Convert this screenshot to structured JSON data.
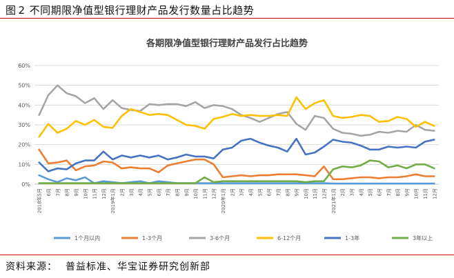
{
  "figure": {
    "label": "图",
    "number": "2",
    "caption": "不同期限净值型银行理财产品发行数量占比趋势"
  },
  "source": {
    "label": "资料来源：",
    "text": "普益标准、华宝证券研究创新部"
  },
  "chart_data": {
    "type": "line",
    "title": "各期限净值型银行理财产品发行占比趋势",
    "xlabel": "",
    "ylabel": "",
    "ylim": [
      0,
      60
    ],
    "yticks": [
      "0%",
      "10%",
      "20%",
      "30%",
      "40%",
      "50%",
      "60%"
    ],
    "grid": "horizontal",
    "legend_position": "bottom",
    "categories": [
      "2018年5月",
      "6月",
      "7月",
      "8月",
      "9月",
      "10月",
      "11月",
      "12月",
      "2019年1月",
      "2月",
      "3月",
      "4月",
      "5月",
      "6月",
      "7月",
      "8月",
      "9月",
      "10月",
      "11月",
      "12月",
      "2020年1月",
      "2月",
      "3月",
      "4月",
      "5月",
      "6月",
      "7月",
      "8月",
      "9月",
      "10月",
      "11月",
      "12月",
      "2021年1月",
      "2月",
      "3月",
      "4月",
      "5月",
      "6月",
      "7月",
      "8月",
      "9月",
      "10月",
      "11月",
      "12月"
    ],
    "series": [
      {
        "name": "1个月以内",
        "color": "#5b9bd5",
        "values": [
          4.5,
          2.5,
          1.0,
          3.0,
          2.0,
          3.5,
          0.5,
          1.5,
          1.0,
          0.5,
          1.0,
          1.5,
          0.5,
          1.5,
          1.0,
          0.5,
          0.5,
          0.5,
          0.5,
          0.5,
          0.5,
          0.5,
          0.5,
          0.5,
          0.5,
          0.5,
          0.5,
          0.5,
          0.5,
          0.5,
          0.5,
          0.5,
          0.3,
          0.3,
          0.3,
          0.3,
          0.3,
          0.3,
          0.3,
          0.3,
          0.3,
          0.3,
          0.3,
          0.3
        ]
      },
      {
        "name": "1-3个月",
        "color": "#ed7d31",
        "values": [
          17.5,
          10.5,
          11.0,
          12.0,
          7.0,
          9.0,
          9.5,
          11.5,
          11.0,
          8.0,
          8.5,
          8.0,
          8.0,
          6.0,
          9.5,
          10.5,
          11.5,
          12.5,
          12.5,
          10.0,
          3.5,
          4.0,
          4.5,
          4.0,
          4.5,
          4.5,
          5.0,
          5.0,
          5.0,
          4.5,
          4.0,
          9.0,
          2.5,
          2.5,
          3.0,
          3.5,
          3.5,
          3.0,
          3.5,
          3.5,
          4.0,
          5.0,
          4.0,
          4.0
        ]
      },
      {
        "name": "3-6个月",
        "color": "#a5a5a5",
        "values": [
          35.0,
          45.0,
          50.0,
          46.0,
          44.5,
          41.0,
          43.5,
          38.0,
          42.5,
          38.5,
          37.5,
          37.0,
          40.5,
          40.0,
          40.5,
          40.5,
          39.5,
          41.5,
          38.5,
          40.0,
          39.5,
          38.0,
          35.0,
          33.5,
          31.5,
          33.5,
          35.5,
          36.5,
          30.5,
          27.5,
          34.5,
          33.5,
          28.0,
          26.0,
          25.5,
          24.5,
          25.0,
          26.5,
          26.0,
          27.0,
          26.5,
          30.0,
          27.5,
          27.0
        ]
      },
      {
        "name": "6-12个月",
        "color": "#ffc000",
        "values": [
          24.0,
          30.5,
          26.0,
          28.0,
          32.0,
          30.0,
          32.5,
          29.0,
          28.5,
          34.5,
          38.0,
          36.5,
          35.0,
          35.5,
          35.0,
          32.5,
          30.0,
          29.5,
          28.0,
          33.0,
          34.0,
          35.5,
          34.5,
          35.0,
          34.5,
          34.5,
          35.0,
          34.5,
          44.0,
          38.0,
          41.0,
          42.5,
          34.5,
          33.5,
          34.0,
          35.0,
          34.5,
          31.5,
          32.0,
          34.0,
          33.0,
          29.0,
          31.5,
          29.5
        ]
      },
      {
        "name": "1-3年",
        "color": "#4472c4",
        "values": [
          11.0,
          6.5,
          8.0,
          7.5,
          10.5,
          12.0,
          12.0,
          16.5,
          12.5,
          14.5,
          13.5,
          14.5,
          13.5,
          14.5,
          12.5,
          13.5,
          15.0,
          14.0,
          14.0,
          13.0,
          17.5,
          18.5,
          22.0,
          23.0,
          21.0,
          19.5,
          18.5,
          16.5,
          23.0,
          15.0,
          16.0,
          19.0,
          22.5,
          21.5,
          21.0,
          19.5,
          17.5,
          17.5,
          19.0,
          18.5,
          19.0,
          18.5,
          21.5,
          22.5
        ]
      },
      {
        "name": "3年以上",
        "color": "#70ad47",
        "values": [
          0.5,
          0.5,
          0.5,
          0.5,
          0.5,
          0.5,
          0.5,
          0.5,
          0.5,
          0.5,
          0.5,
          0.5,
          0.5,
          0.5,
          0.5,
          0.5,
          0.5,
          0.5,
          3.5,
          1.0,
          1.5,
          1.5,
          1.5,
          1.5,
          1.5,
          1.5,
          1.5,
          1.5,
          1.5,
          1.0,
          1.5,
          1.5,
          7.5,
          9.0,
          8.5,
          9.5,
          12.0,
          11.5,
          8.5,
          9.5,
          8.0,
          10.0,
          10.0,
          8.0
        ]
      }
    ]
  }
}
